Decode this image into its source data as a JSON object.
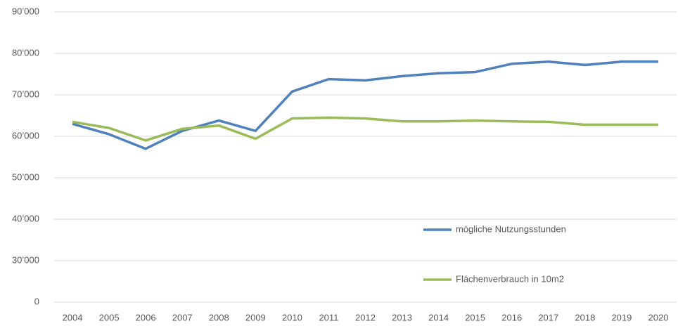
{
  "chart_data": {
    "type": "line",
    "categories": [
      "2004",
      "2005",
      "2006",
      "2007",
      "2008",
      "2009",
      "2010",
      "2011",
      "2012",
      "2013",
      "2014",
      "2015",
      "2016",
      "2017",
      "2018",
      "2019",
      "2020"
    ],
    "series": [
      {
        "name": "mögliche Nutzungsstunden",
        "color": "#4f81bd",
        "values": [
          63000,
          60500,
          57000,
          61300,
          63800,
          61300,
          70800,
          73800,
          73500,
          74500,
          75200,
          75500,
          77500,
          78000,
          77200,
          78000,
          78000
        ]
      },
      {
        "name": "Flächenverbrauch in 10m2",
        "color": "#9bbb59",
        "values": [
          63500,
          62000,
          59000,
          61800,
          62600,
          59400,
          64300,
          64500,
          64300,
          63600,
          63600,
          63800,
          63600,
          63500,
          62800,
          62800,
          62800
        ]
      }
    ],
    "ylim": [
      0,
      90000
    ],
    "yticks": [
      0,
      {
        "value": 30000,
        "label": "30’000"
      },
      {
        "value": 40000,
        "label": "40’000"
      },
      {
        "value": 50000,
        "label": "50’000"
      },
      {
        "value": 60000,
        "label": "60’000"
      },
      {
        "value": 70000,
        "label": "70’000"
      },
      {
        "value": 80000,
        "label": "80’000"
      },
      {
        "value": 90000,
        "label": "90’000"
      }
    ],
    "grid": true
  }
}
